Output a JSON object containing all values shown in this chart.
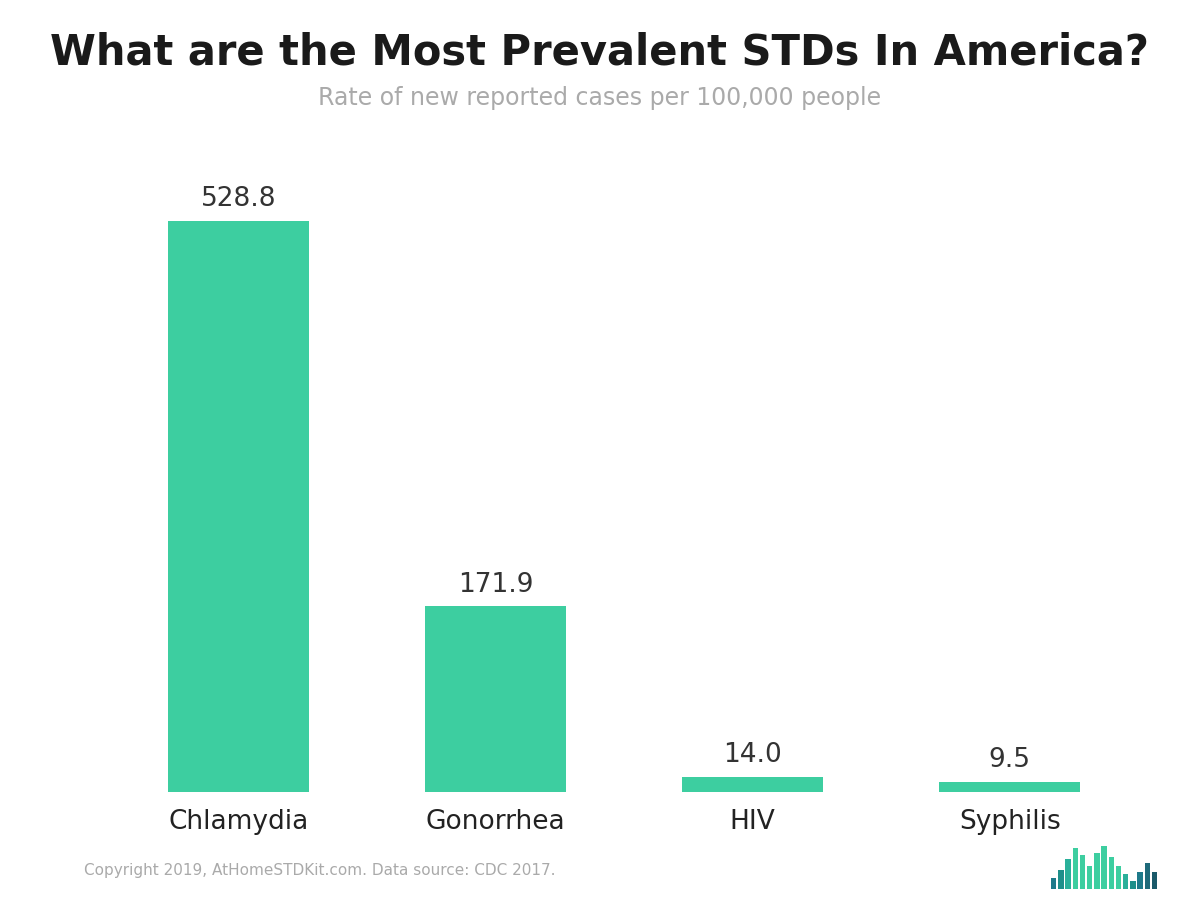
{
  "title": "What are the Most Prevalent STDs In America?",
  "subtitle": "Rate of new reported cases per 100,000 people",
  "categories": [
    "Chlamydia",
    "Gonorrhea",
    "HIV",
    "Syphilis"
  ],
  "values": [
    528.8,
    171.9,
    14.0,
    9.5
  ],
  "bar_color": "#3dcea0",
  "title_fontsize": 30,
  "subtitle_fontsize": 17,
  "subtitle_color": "#aaaaaa",
  "value_fontsize": 19,
  "value_color": "#333333",
  "tick_fontsize": 19,
  "tick_color": "#222222",
  "background_color": "#ffffff",
  "footer_text": "Copyright 2019, AtHomeSTDKit.com. Data source: CDC 2017.",
  "footer_fontsize": 11,
  "footer_color": "#aaaaaa",
  "ylim": [
    0,
    600
  ],
  "bar_width": 0.55,
  "wf_heights": [
    0.25,
    0.45,
    0.7,
    0.95,
    0.8,
    0.55,
    0.85,
    1.0,
    0.75,
    0.55,
    0.35,
    0.2,
    0.4,
    0.6,
    0.4
  ],
  "wf_colors": [
    "#1e7a8a",
    "#1e8f8a",
    "#2ab09a",
    "#3dcea0",
    "#3dcea0",
    "#3dcea0",
    "#3dcea0",
    "#3dcea0",
    "#3dcea0",
    "#3dcea0",
    "#2ab09a",
    "#1e8f8a",
    "#1e7a8a",
    "#1e6a7a",
    "#1a5a6a"
  ]
}
